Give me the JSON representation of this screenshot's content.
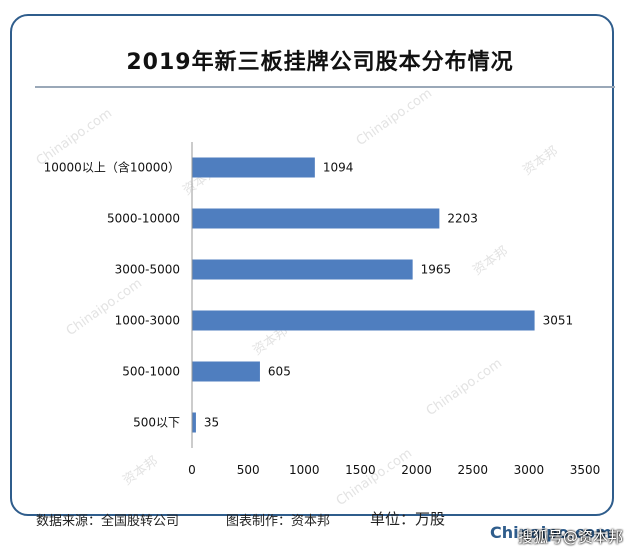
{
  "chart_data": {
    "type": "bar",
    "orientation": "horizontal",
    "title": "2019年新三板挂牌公司股本分布情况",
    "categories": [
      "10000以上（含10000）",
      "5000-10000",
      "3000-5000",
      "1000-3000",
      "500-1000",
      "500以下"
    ],
    "values": [
      1094,
      2203,
      1965,
      3051,
      605,
      35
    ],
    "xlim": [
      0,
      3500
    ],
    "xticks": [
      0,
      500,
      1000,
      1500,
      2000,
      2500,
      3000,
      3500
    ],
    "bar_color": "#4f7ebf",
    "grid": false,
    "legend": "none"
  },
  "footer": {
    "source": "数据来源：全国股转公司",
    "maker": "图表制作：资本邦",
    "unit": "单位：万股"
  },
  "brand": "Chinaipo.com",
  "caption": "搜狐号@资本邦",
  "watermark": {
    "text_cn": "资本邦",
    "text_en": "Chinaipo.com"
  }
}
